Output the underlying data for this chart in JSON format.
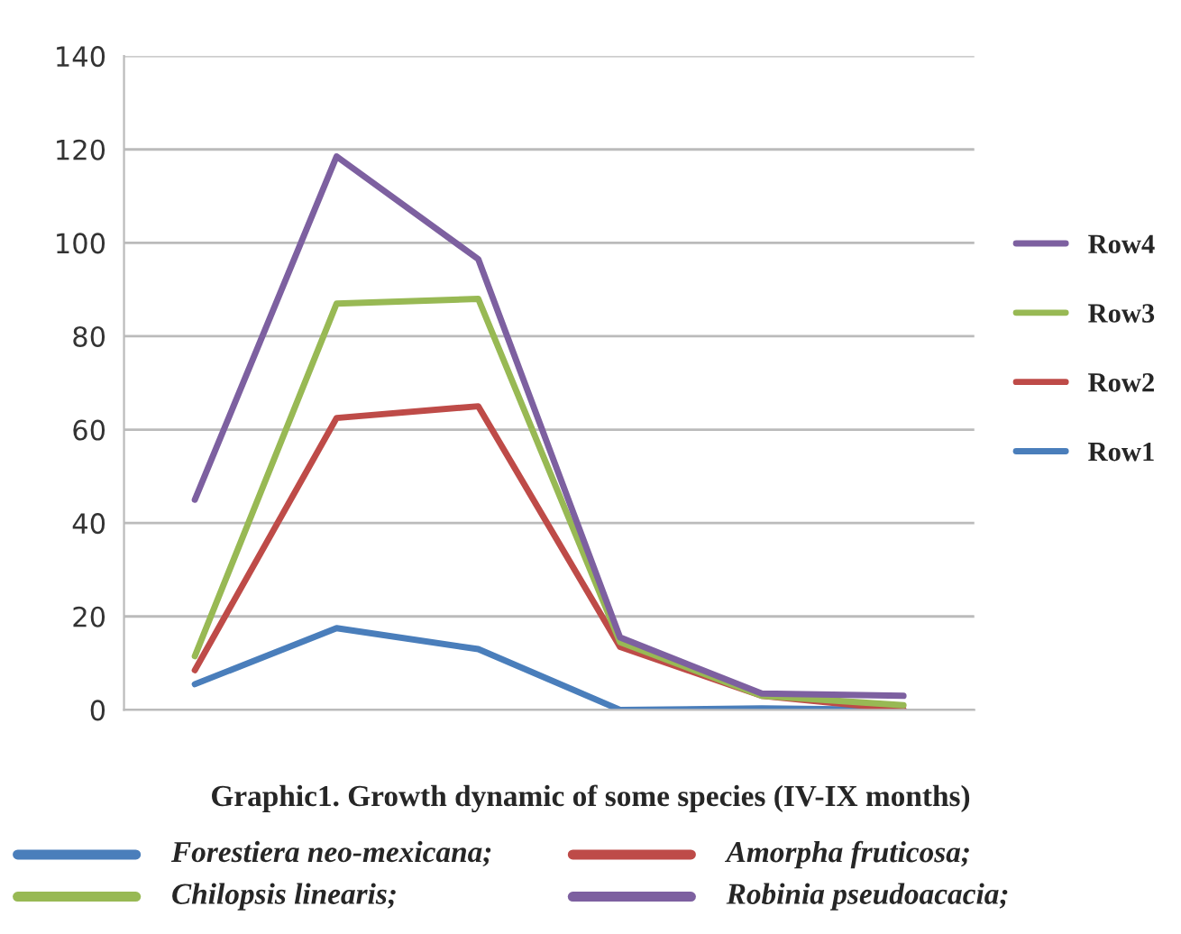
{
  "chart_data": {
    "type": "line",
    "title": "Graphic1. Growth dynamic of some species (IV-IX months)",
    "categories": [
      null,
      null,
      null,
      null,
      null,
      null
    ],
    "series": [
      {
        "name": "Row1",
        "color": "#4a7ebb",
        "values": [
          5.5,
          17.5,
          13,
          0,
          0.3,
          0
        ]
      },
      {
        "name": "Row2",
        "color": "#be4b48",
        "values": [
          8.5,
          62.5,
          65,
          13.5,
          3,
          0
        ]
      },
      {
        "name": "Row3",
        "color": "#98b954",
        "values": [
          11.5,
          87,
          88,
          14.5,
          3,
          1
        ]
      },
      {
        "name": "Row4",
        "color": "#7d60a0",
        "values": [
          45,
          118.5,
          96.5,
          15.5,
          3.5,
          3
        ]
      }
    ],
    "ylim": [
      0,
      140
    ],
    "yticks": [
      0,
      20,
      40,
      60,
      80,
      100,
      120,
      140
    ],
    "grid": "y",
    "legend": "right",
    "marker": "none",
    "line_style": "solid",
    "annotations": [
      "Forestiera neo-mexicana;",
      "Amorpha fruticosa;",
      "Chilopsis linearis;",
      "Robinia pseudoacacia;"
    ]
  }
}
